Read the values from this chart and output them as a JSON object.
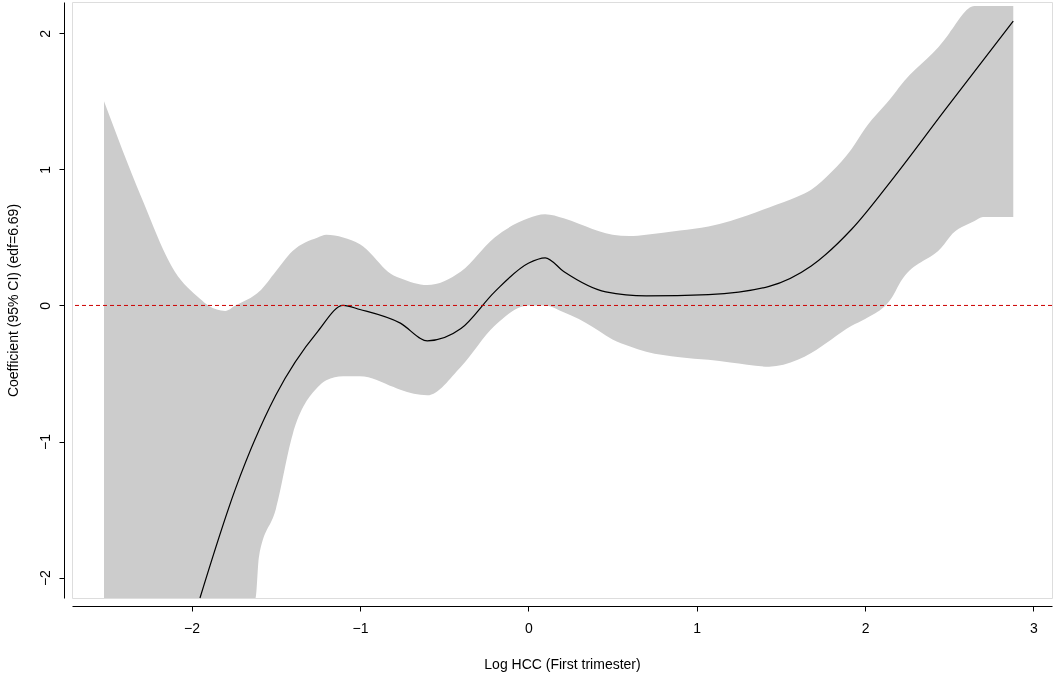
{
  "chart_data": {
    "type": "line",
    "xlabel": "Log HCC (First trimester)",
    "ylabel": "Coefficient (95% CI) (edf=6.69)",
    "series": [
      {
        "color": "#000000",
        "x": [
          -2.52,
          -2.3,
          -2.1,
          -1.95,
          -1.9,
          -1.8,
          -1.74,
          -1.62,
          -1.6,
          -1.5,
          -1.4,
          -1.25,
          -1.2,
          -1.1,
          -1.0,
          -0.8,
          -0.76,
          -0.6,
          -0.4,
          -0.2,
          0,
          0.1,
          0.21,
          0.3,
          0.46,
          0.5,
          0.6,
          0.7,
          0.9,
          1.07,
          1.2,
          1.43,
          1.6,
          1.68,
          1.8,
          1.92,
          2.0,
          2.17,
          2.2,
          2.47,
          2.5,
          2.65,
          2.7,
          2.88
        ],
        "values": [
          null,
          null,
          null,
          -2.15,
          null,
          null,
          -1.35,
          null,
          null,
          -0.66,
          null,
          -0.19,
          null,
          0.0,
          -0.03,
          null,
          -0.13,
          -0.26,
          -0.17,
          0.1,
          0.31,
          0.35,
          0.25,
          null,
          0.1,
          null,
          null,
          0.07,
          null,
          0.08,
          null,
          0.14,
          null,
          0.29,
          null,
          0.56,
          null,
          0.94,
          null,
          1.43,
          null,
          null,
          null,
          2.09
        ],
        "upper": [
          1.5,
          0.8,
          0.25,
          0.05,
          0.0,
          -0.04,
          0.0,
          0.08,
          0.1,
          0.25,
          0.4,
          0.5,
          0.52,
          0.5,
          0.45,
          0.22,
          0.2,
          0.15,
          0.25,
          0.5,
          0.64,
          0.67,
          0.64,
          0.6,
          0.53,
          0.52,
          0.51,
          0.52,
          0.55,
          0.58,
          0.62,
          0.72,
          0.8,
          0.85,
          0.98,
          1.15,
          1.3,
          1.55,
          1.6,
          1.95,
          2.0,
          2.2,
          2.2,
          2.2
        ],
        "lower": [
          -2.15,
          -2.15,
          -2.15,
          -2.15,
          -2.15,
          -2.15,
          -2.15,
          -2.15,
          -1.85,
          -1.5,
          -0.95,
          -0.6,
          -0.55,
          -0.52,
          -0.52,
          -0.6,
          -0.62,
          -0.66,
          -0.45,
          -0.15,
          0.0,
          0.0,
          -0.05,
          -0.1,
          -0.22,
          -0.25,
          -0.3,
          -0.34,
          -0.38,
          -0.4,
          -0.42,
          -0.45,
          -0.4,
          -0.35,
          -0.25,
          -0.15,
          -0.1,
          0.08,
          0.15,
          0.45,
          0.5,
          0.62,
          0.65,
          0.65
        ]
      }
    ],
    "xlim": [
      -2.71,
      3.11
    ],
    "ylim": [
      -2.15,
      2.23
    ],
    "xticks": [
      -2,
      -1,
      0,
      1,
      2,
      3
    ],
    "yticks": [
      -2,
      -1,
      0,
      1,
      2
    ],
    "grid": false,
    "marker": "none",
    "line_style": "solid",
    "ref_lines": [
      {
        "axis": "y",
        "value": 0,
        "color": "#cc0000",
        "line_style": "dashed"
      }
    ]
  }
}
